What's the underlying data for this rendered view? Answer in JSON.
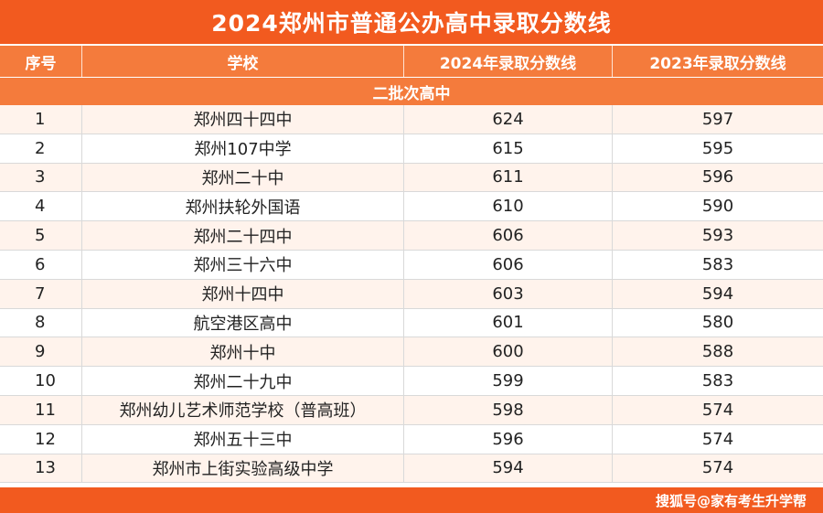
{
  "title": "2024郑州市普通公办高中录取分数线",
  "headers": {
    "no": "序号",
    "school": "学校",
    "score2024": "2024年录取分数线",
    "score2023": "2023年录取分数线"
  },
  "section": "二批次高中",
  "rows": [
    {
      "no": "1",
      "school": "郑州四十四中",
      "s2024": "624",
      "s2023": "597"
    },
    {
      "no": "2",
      "school": "郑州107中学",
      "s2024": "615",
      "s2023": "595"
    },
    {
      "no": "3",
      "school": "郑州二十中",
      "s2024": "611",
      "s2023": "596"
    },
    {
      "no": "4",
      "school": "郑州扶轮外国语",
      "s2024": "610",
      "s2023": "590"
    },
    {
      "no": "5",
      "school": "郑州二十四中",
      "s2024": "606",
      "s2023": "593"
    },
    {
      "no": "6",
      "school": "郑州三十六中",
      "s2024": "606",
      "s2023": "583"
    },
    {
      "no": "7",
      "school": "郑州十四中",
      "s2024": "603",
      "s2023": "594"
    },
    {
      "no": "8",
      "school": "航空港区高中",
      "s2024": "601",
      "s2023": "580"
    },
    {
      "no": "9",
      "school": "郑州十中",
      "s2024": "600",
      "s2023": "588"
    },
    {
      "no": "10",
      "school": "郑州二十九中",
      "s2024": "599",
      "s2023": "583"
    },
    {
      "no": "11",
      "school": "郑州幼儿艺术师范学校（普高班）",
      "s2024": "598",
      "s2023": "574"
    },
    {
      "no": "12",
      "school": "郑州五十三中",
      "s2024": "596",
      "s2023": "574"
    },
    {
      "no": "13",
      "school": "郑州市上街实验高级中学",
      "s2024": "594",
      "s2023": "574"
    }
  ],
  "watermark": "搜狐号@家有考生升学帮",
  "colors": {
    "accent": "#f25a1f",
    "header": "#f47b3c",
    "stripe": "#fff3ec"
  }
}
